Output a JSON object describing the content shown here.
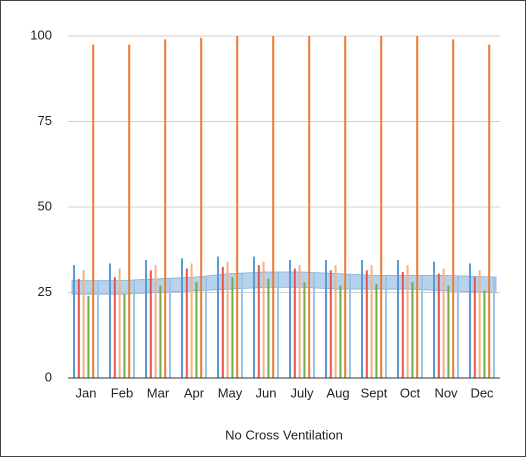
{
  "chart_data": {
    "type": "bar",
    "x_label": "No Cross Ventilation",
    "categories": [
      "Jan",
      "Feb",
      "Mar",
      "Apr",
      "May",
      "Jun",
      "July",
      "Aug",
      "Sept",
      "Oct",
      "Nov",
      "Dec"
    ],
    "series": [
      {
        "color": "#5b9bd5",
        "values": [
          33,
          33.5,
          34.5,
          35,
          35.5,
          35.5,
          34.5,
          34.5,
          34.5,
          34.5,
          34,
          33.5
        ]
      },
      {
        "color": "#e8554e",
        "values": [
          29,
          29.5,
          31.5,
          32,
          32.5,
          33,
          32,
          31.5,
          31.5,
          31,
          30.5,
          29.5
        ]
      },
      {
        "color": "#f4b183",
        "values": [
          31.5,
          32,
          33,
          33.5,
          34,
          34,
          33,
          33,
          33,
          33,
          32,
          31.5
        ]
      },
      {
        "color": "#70ad47",
        "values": [
          24,
          24.5,
          27,
          28,
          29.5,
          29,
          28,
          27,
          27.5,
          28,
          27,
          25.5
        ]
      },
      {
        "color": "#ed7d31",
        "values": [
          97.5,
          97.5,
          99,
          99.5,
          100,
          100,
          100,
          100,
          100,
          100,
          99,
          97.5
        ]
      },
      {
        "color": "#9dc3e6",
        "values": [
          28.5,
          28.5,
          29,
          29.5,
          30.5,
          31,
          31,
          30.5,
          30,
          30,
          30,
          29.5
        ]
      }
    ],
    "band": {
      "color": "#9dc3e6",
      "high": [
        28.5,
        28.5,
        29,
        29.5,
        30.5,
        31,
        31,
        30.5,
        30,
        30,
        30,
        29.5
      ],
      "low": [
        24.5,
        24.5,
        25,
        25.5,
        26,
        26.5,
        26.5,
        26,
        26,
        26,
        25.5,
        25
      ]
    },
    "ylim": [
      0,
      100
    ],
    "yticks": [
      0,
      25,
      50,
      75,
      100
    ],
    "grid": true
  }
}
